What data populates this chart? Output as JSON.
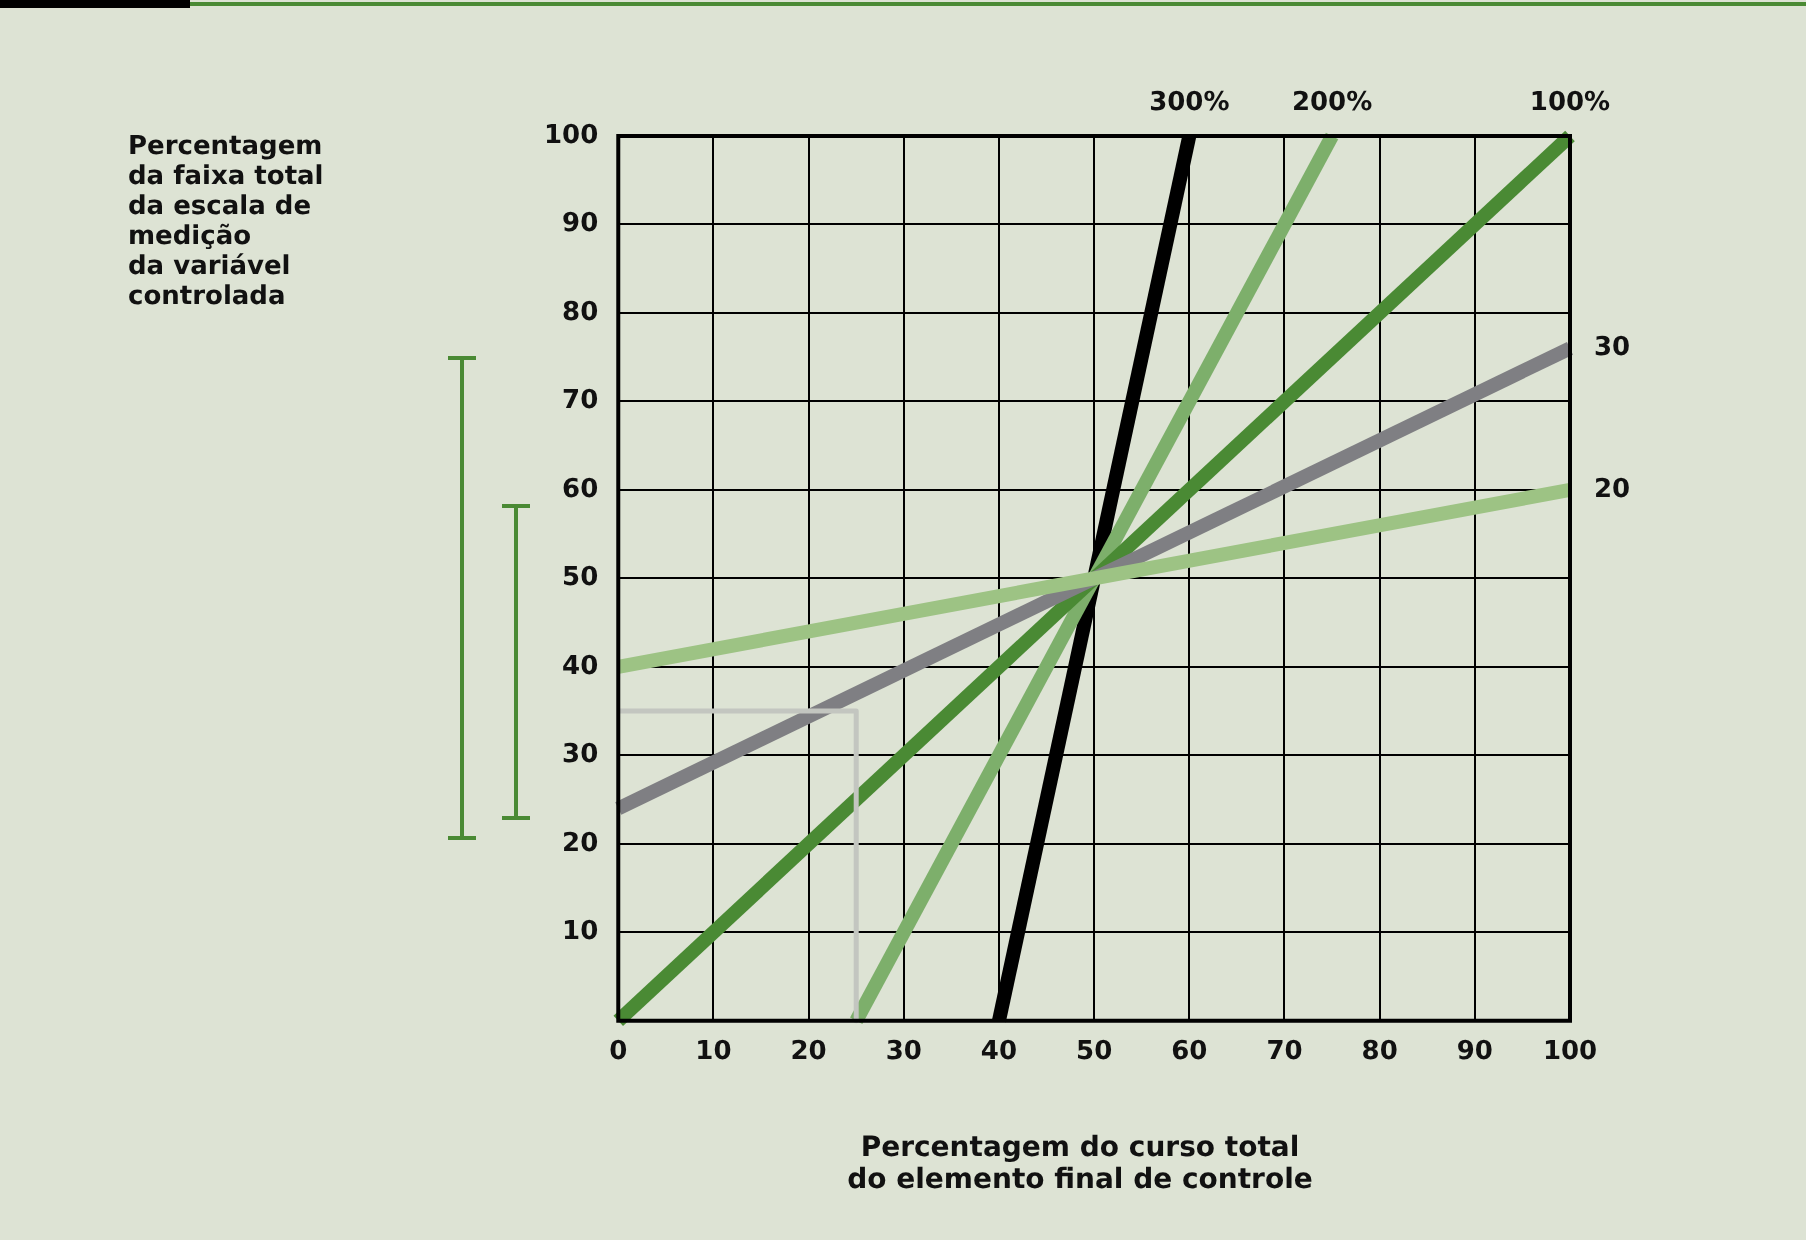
{
  "chart_data": {
    "type": "line",
    "xlabel": "Percentagem do curso total\ndo elemento final de controle",
    "annotations": [
      "Percentagem\nda faixa total\nda escala de\nmedição\nda variável\ncontrolada"
    ],
    "xlim": [
      0,
      100
    ],
    "xticks": [
      0,
      10,
      20,
      30,
      40,
      50,
      60,
      70,
      80,
      90,
      100
    ],
    "ylim": [
      0,
      100
    ],
    "yticks": [
      10,
      20,
      30,
      40,
      50,
      60,
      70,
      80,
      90,
      100
    ],
    "grid": true,
    "legend": false,
    "marker": "none",
    "line_style": "solid",
    "series": [
      {
        "color": "#c3c6c0",
        "x": [
          0,
          25,
          25
        ],
        "values": [
          35,
          35,
          0
        ]
      },
      {
        "name": "20",
        "color": "#9dc384",
        "x": [
          0,
          100
        ],
        "values": [
          40,
          60
        ]
      },
      {
        "name": "30",
        "color": "#7f7f83",
        "x": [
          0,
          100
        ],
        "values": [
          24,
          76
        ]
      },
      {
        "name": "100%",
        "color": "#4a8a34",
        "x": [
          0,
          100
        ],
        "values": [
          0,
          100
        ]
      },
      {
        "name": "200%",
        "color": "#7daf6b",
        "x": [
          25,
          75
        ],
        "values": [
          0,
          100
        ]
      },
      {
        "name": "300%",
        "color": "#000000",
        "x": [
          40,
          60
        ],
        "values": [
          0,
          100
        ]
      }
    ]
  }
}
